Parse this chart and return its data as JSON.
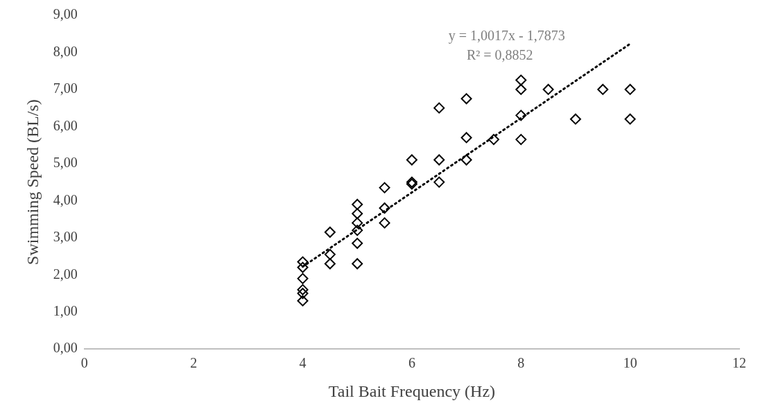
{
  "chart_data": {
    "type": "scatter",
    "xlabel": "Tail Bait Frequency (Hz)",
    "ylabel": "Swimming Speed (BL/s)",
    "xlim": [
      0,
      12
    ],
    "xticks": [
      0,
      2,
      4,
      6,
      8,
      10,
      12
    ],
    "ylim": [
      0,
      9
    ],
    "yticks": [
      {
        "value": 0,
        "label": "0,00"
      },
      {
        "value": 1,
        "label": "1,00"
      },
      {
        "value": 2,
        "label": "2,00"
      },
      {
        "value": 3,
        "label": "3,00"
      },
      {
        "value": 4,
        "label": "4,00"
      },
      {
        "value": 5,
        "label": "5,00"
      },
      {
        "value": 6,
        "label": "6,00"
      },
      {
        "value": 7,
        "label": "7,00"
      },
      {
        "value": 8,
        "label": "8,00"
      },
      {
        "value": 9,
        "label": "9,00"
      }
    ],
    "grid": false,
    "legend": false,
    "series": [
      {
        "marker": "diamond",
        "color": "#000000",
        "x": [
          4,
          4,
          4,
          4,
          4,
          4,
          4.5,
          4.5,
          4.5,
          5,
          5,
          5,
          5,
          5,
          5,
          5.5,
          5.5,
          5.5,
          6,
          6,
          6,
          6.5,
          6.5,
          6.5,
          7,
          7,
          7,
          7.5,
          8,
          8,
          8,
          8,
          8.5,
          9,
          9.5,
          10,
          10
        ],
        "values": [
          2.35,
          2.2,
          1.9,
          1.6,
          1.5,
          1.3,
          3.15,
          2.55,
          2.3,
          3.9,
          3.65,
          3.4,
          3.2,
          2.85,
          2.3,
          4.35,
          3.8,
          3.4,
          5.1,
          4.5,
          4.45,
          6.5,
          5.1,
          4.5,
          6.75,
          5.7,
          5.1,
          5.65,
          7.25,
          7.0,
          6.3,
          5.65,
          7.0,
          6.2,
          7.0,
          7.0,
          6.2
        ]
      },
      {
        "type": "line",
        "color": "#000000",
        "line_style": "dotted",
        "x": [
          4,
          10
        ],
        "values": [
          2.22,
          8.23
        ]
      }
    ],
    "annotations": [
      "y = 1,0017x - 1,7873",
      "R² = 0,8852"
    ]
  }
}
